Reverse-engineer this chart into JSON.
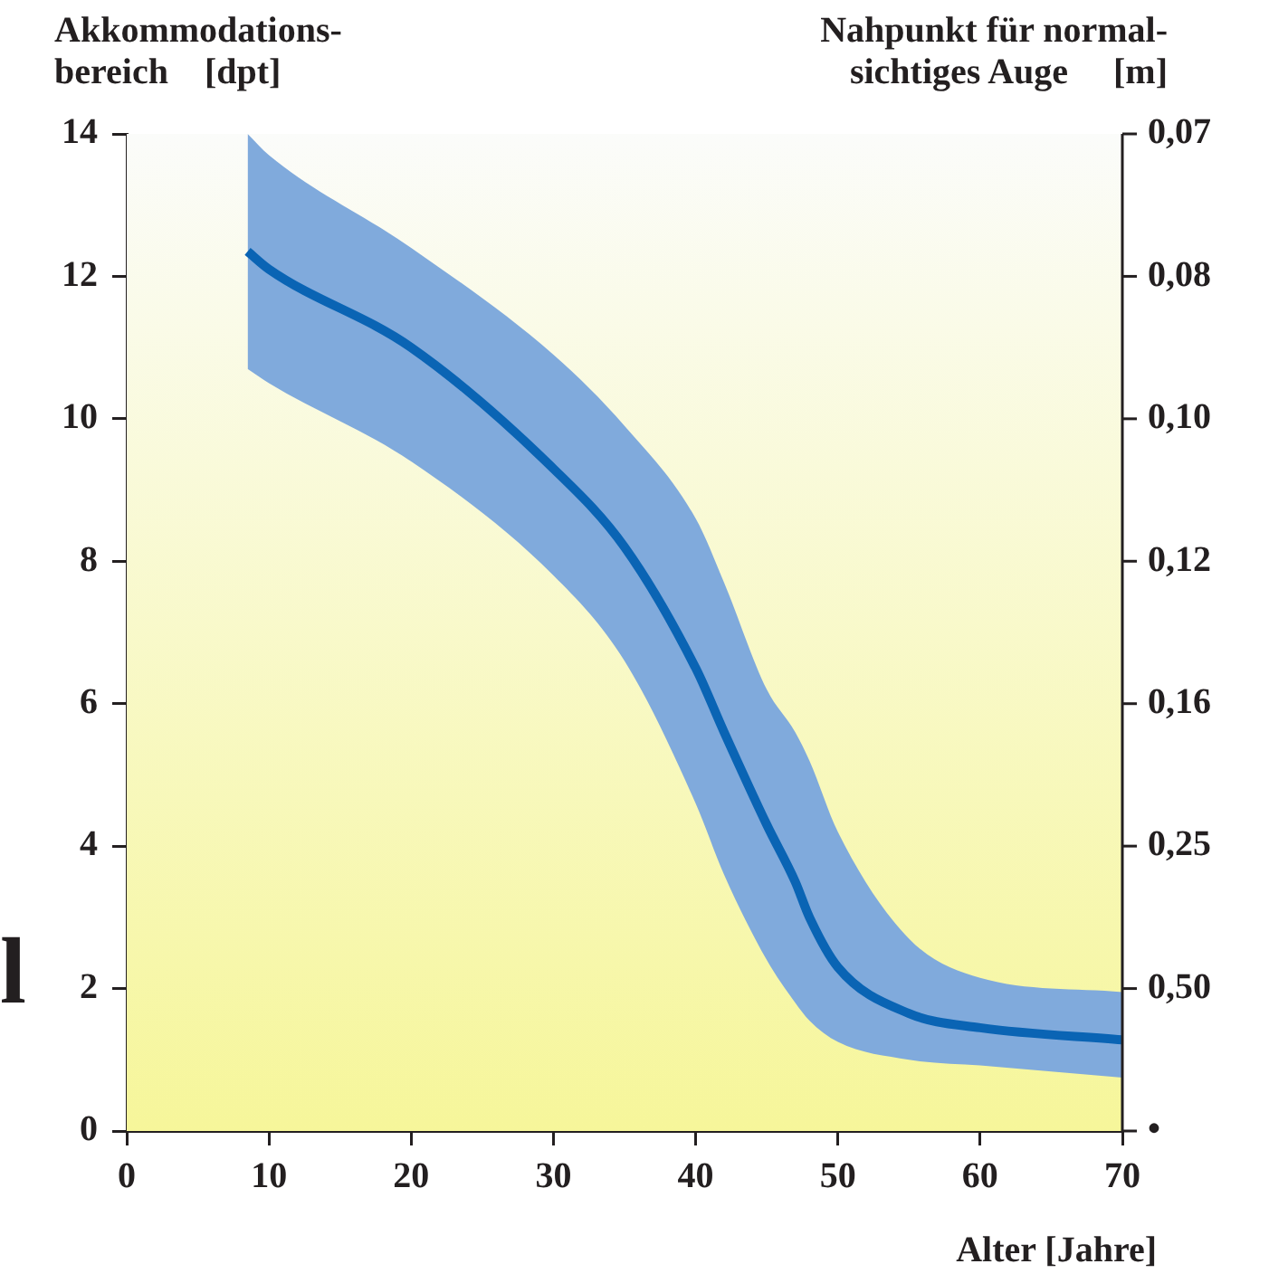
{
  "chart_data": {
    "type": "line",
    "ylabel": "Akkommodations-\nbereich    [dpt]",
    "y2label": "Nahpunkt für normal-\nsichtiges Auge     [m]",
    "xlabel": "Alter [Jahre]",
    "annotations": [
      "l",
      "•",
      "0,50",
      "0,25",
      "0,16",
      "0,12",
      "0,10",
      "0,08",
      "0,07"
    ],
    "xlim": [
      0,
      70
    ],
    "xticks": [
      0,
      10,
      20,
      30,
      40,
      50,
      60,
      70
    ],
    "ylim": [
      0,
      14
    ],
    "yticks": [
      0,
      2,
      4,
      6,
      8,
      10,
      12,
      14
    ],
    "grid": false,
    "legend": false,
    "marker": "none",
    "line_style": "solid",
    "series": [
      {
        "type": "line",
        "color": "#0a64b4",
        "x": [
          8.5,
          10,
          20,
          30,
          35,
          40,
          42,
          45,
          47,
          48,
          50,
          55,
          60,
          70
        ],
        "values": [
          12.35,
          12.1,
          11.0,
          9.3,
          8.2,
          6.5,
          5.6,
          4.3,
          3.5,
          3.0,
          2.3,
          1.65,
          1.45,
          1.28
        ],
        "upper": [
          14.0,
          13.7,
          12.4,
          10.9,
          9.9,
          8.6,
          7.7,
          6.2,
          5.6,
          5.2,
          4.2,
          2.7,
          2.15,
          1.95
        ],
        "lower": [
          10.7,
          10.5,
          9.4,
          7.8,
          6.6,
          4.6,
          3.6,
          2.4,
          1.8,
          1.55,
          1.25,
          1.0,
          0.92,
          0.75
        ]
      }
    ]
  }
}
